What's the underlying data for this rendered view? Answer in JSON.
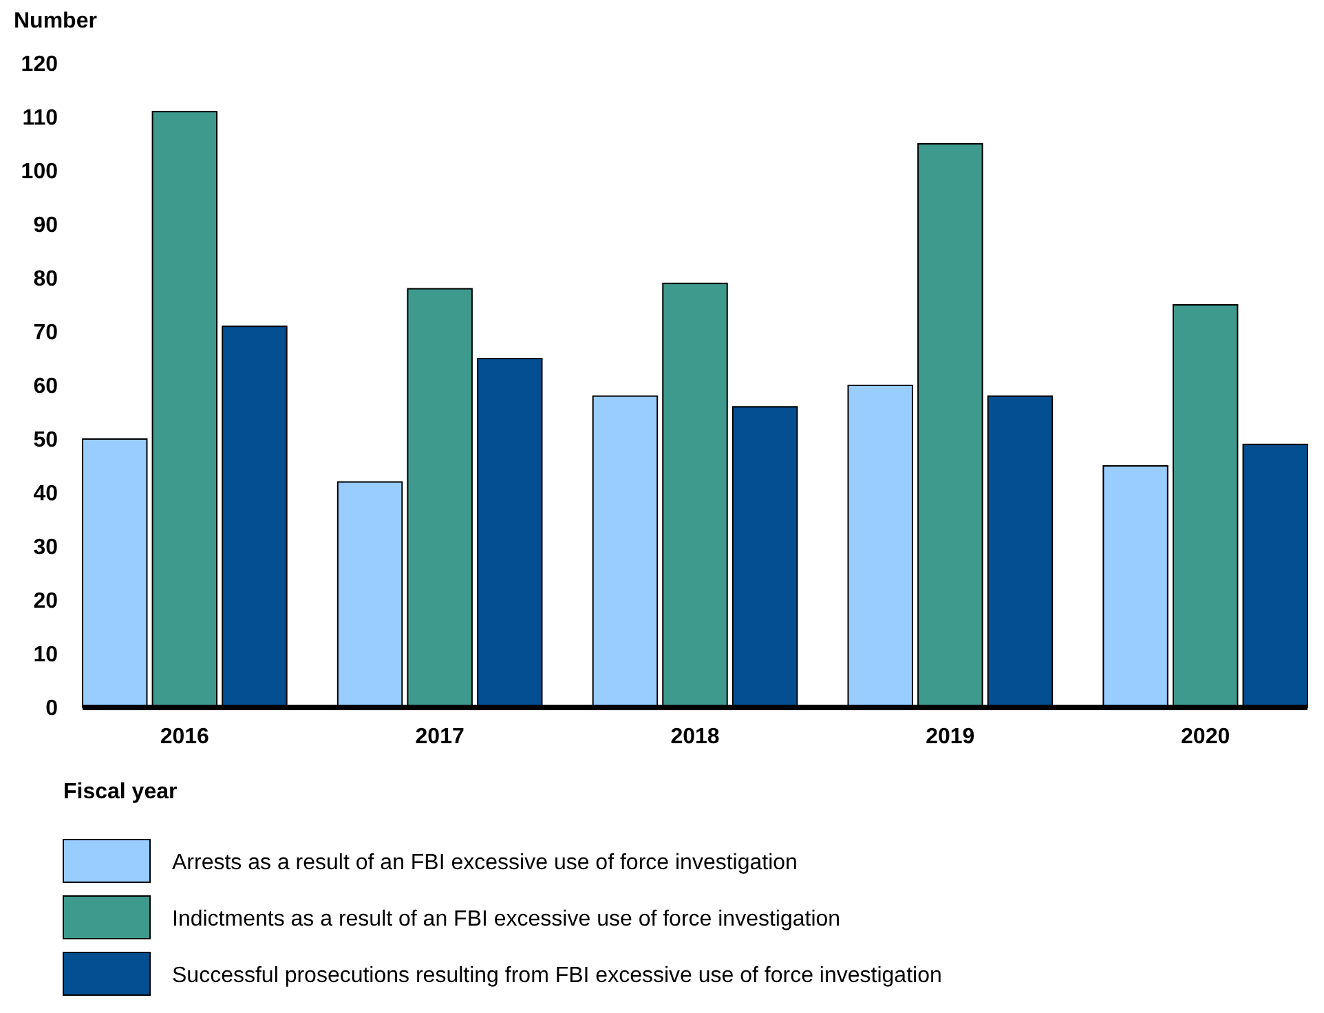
{
  "chart_data": {
    "type": "bar",
    "ylabel": "Number",
    "xlabel": "Fiscal year",
    "categories": [
      "2016",
      "2017",
      "2018",
      "2019",
      "2020"
    ],
    "series": [
      {
        "name": "Arrests as a result of an FBI excessive use of force investigation",
        "color": "#99ccff",
        "values": [
          50,
          42,
          58,
          60,
          45
        ]
      },
      {
        "name": "Indictments as a result of an FBI excessive use of force investigation",
        "color": "#3f9a8e",
        "values": [
          111,
          78,
          79,
          105,
          75
        ]
      },
      {
        "name": "Successful prosecutions resulting from FBI excessive use of force investigation",
        "color": "#044f91",
        "values": [
          71,
          65,
          56,
          58,
          49
        ]
      }
    ],
    "ylim": [
      0,
      120
    ],
    "yticks": [
      0,
      10,
      20,
      30,
      40,
      50,
      60,
      70,
      80,
      90,
      100,
      110,
      120
    ],
    "grid": false,
    "legend": "bottom"
  }
}
